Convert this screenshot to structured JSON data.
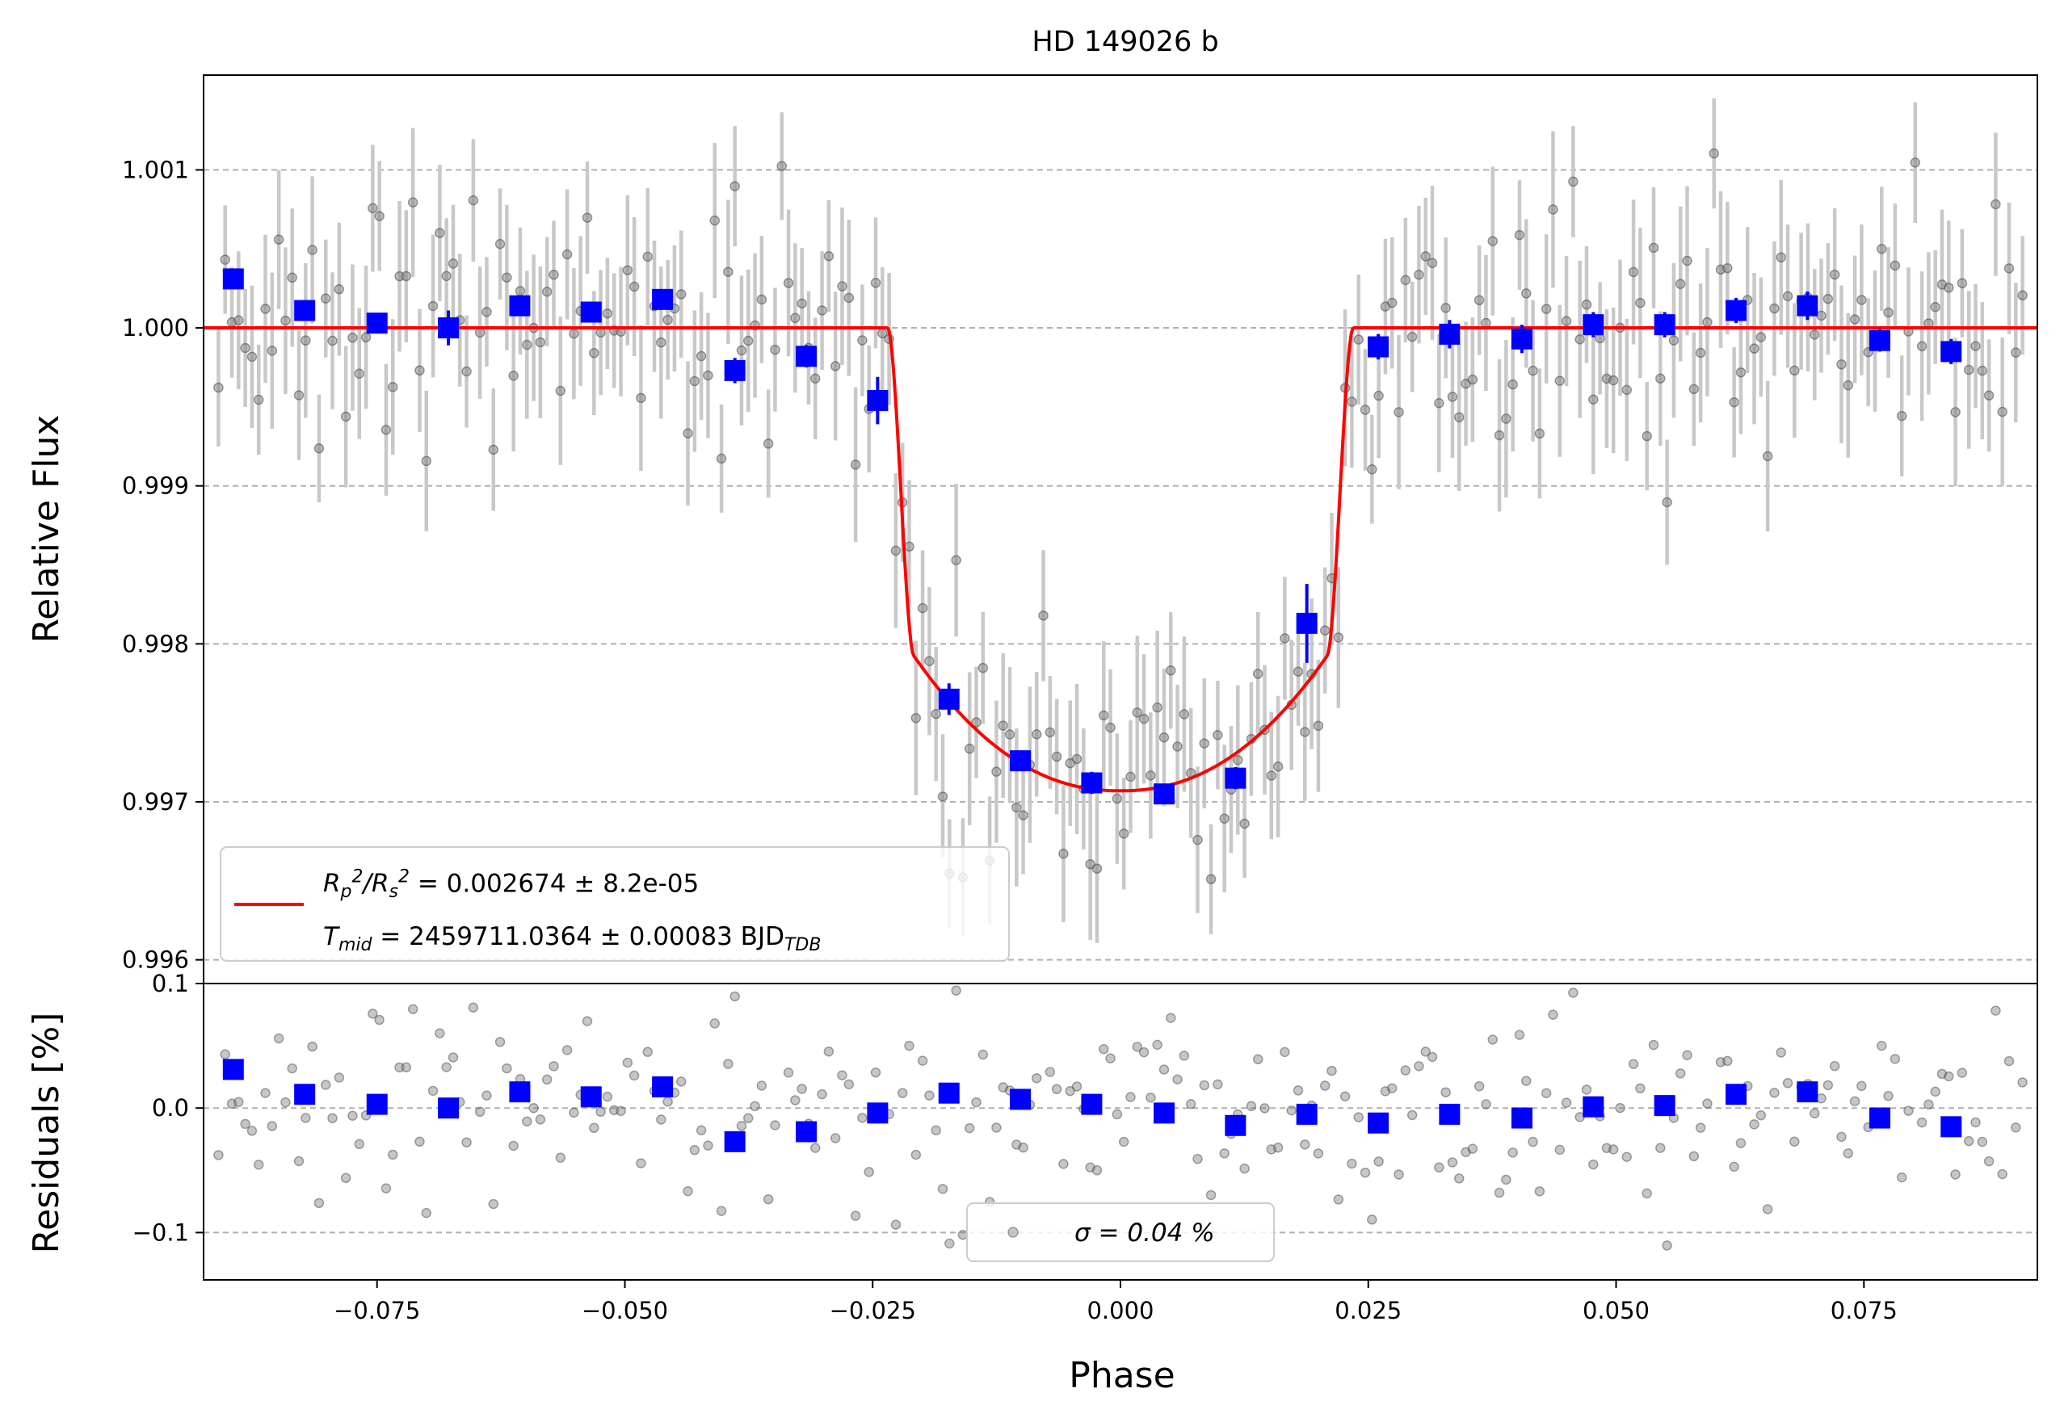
{
  "chart_data": [
    {
      "type": "scatter",
      "panel": "top",
      "title": "HD 149026 b",
      "xlabel": "",
      "ylabel": "Relative Flux",
      "xlim": [
        -0.0925,
        0.0925
      ],
      "ylim": [
        0.99585,
        1.0016
      ],
      "y_ticks": [
        0.996,
        0.997,
        0.998,
        0.999,
        1.0,
        1.001
      ],
      "y_tick_labels": [
        "0.996",
        "0.997",
        "0.998",
        "0.999",
        "1.000",
        "1.001"
      ],
      "grid": "horizontal dashed",
      "legend_position": "lower-left",
      "legend": {
        "model_label_html": "R<sub>p</sub><sup>2</sup>/R<sub>s</sub><sup>2</sup> = 0.002674 ± 8.2e-05",
        "tmid_label_html": "T<sub>mid</sub> = 2459711.0364 ± 0.00083 BJD<sub>TDB</sub>"
      },
      "model": {
        "color": "#ff0000",
        "baseline": 1.0,
        "depth": 0.002674,
        "t1": 0.0235,
        "t2": 0.0208,
        "bottom": 0.99707
      },
      "binned": {
        "color": "#0000ff",
        "x": [
          -0.0895,
          -0.0823,
          -0.075,
          -0.0678,
          -0.0606,
          -0.0534,
          -0.0462,
          -0.0389,
          -0.0317,
          -0.0245,
          -0.0173,
          -0.0101,
          -0.0029,
          0.0044,
          0.0116,
          0.0188,
          0.026,
          0.0332,
          0.0405,
          0.0477,
          0.0549,
          0.0621,
          0.0693,
          0.0766,
          0.0838
        ],
        "y": [
          1.00031,
          1.00011,
          1.00003,
          1.0,
          1.00014,
          1.0001,
          1.00018,
          0.99973,
          0.99982,
          0.99954,
          0.99765,
          0.99726,
          0.99712,
          0.99705,
          0.99715,
          0.99813,
          0.99988,
          0.99996,
          0.99993,
          1.00002,
          1.00002,
          1.00011,
          1.00014,
          0.99992,
          0.99985
        ],
        "yerr": [
          4e-05,
          5e-05,
          6e-05,
          0.00011,
          5e-05,
          6e-05,
          5e-05,
          8e-05,
          7e-05,
          0.00015,
          0.0001,
          6e-05,
          7e-05,
          6e-05,
          7e-05,
          0.00025,
          8e-05,
          9e-05,
          9e-05,
          8e-05,
          8e-05,
          8e-05,
          9e-05,
          7e-05,
          8e-05
        ]
      },
      "raw_points": {
        "color": "#808080",
        "count": 270,
        "scatter": 0.0004,
        "error_bar": 0.0004
      }
    },
    {
      "type": "scatter",
      "panel": "bottom",
      "xlabel": "Phase",
      "ylabel": "Residuals [%]",
      "xlim": [
        -0.0925,
        0.0925
      ],
      "ylim": [
        -0.138,
        0.1
      ],
      "x_ticks": [
        -0.075,
        -0.05,
        -0.025,
        0.0,
        0.025,
        0.05,
        0.075
      ],
      "x_tick_labels": [
        "−0.075",
        "−0.050",
        "−0.025",
        "0.000",
        "0.025",
        "0.050",
        "0.075"
      ],
      "y_ticks": [
        -0.1,
        0.0,
        0.1
      ],
      "y_tick_labels": [
        "−0.1",
        "0.0",
        "0.1"
      ],
      "grid": "horizontal dashed",
      "legend_position": "lower-center",
      "legend": {
        "sigma_label": "σ = 0.04 %"
      },
      "binned_residuals": {
        "color": "#0000ff",
        "y": [
          0.031,
          0.011,
          0.003,
          0.0,
          0.013,
          0.009,
          0.017,
          -0.027,
          -0.019,
          -0.004,
          0.012,
          0.007,
          0.003,
          -0.004,
          -0.014,
          -0.005,
          -0.012,
          -0.005,
          -0.008,
          0.001,
          0.002,
          0.011,
          0.013,
          -0.008,
          -0.015
        ]
      }
    }
  ]
}
